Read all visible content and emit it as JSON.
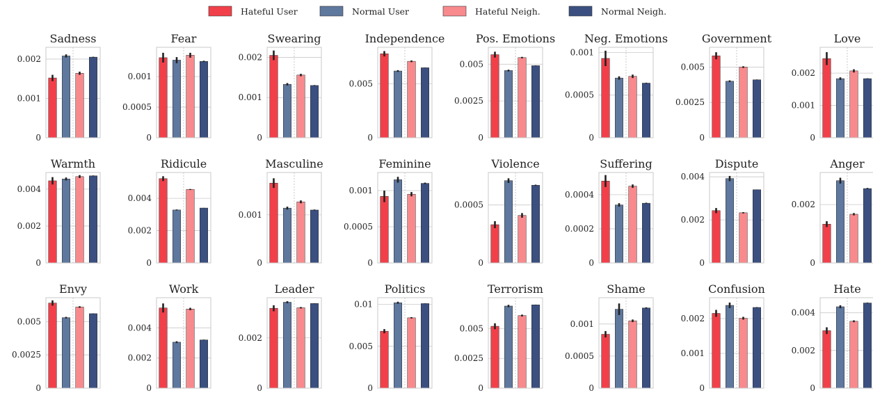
{
  "legend": {
    "position": "top-center",
    "entries": [
      {
        "label": "Hateful User",
        "color": "#f2404a"
      },
      {
        "label": "Normal User",
        "color": "#5f789e"
      },
      {
        "label": "Hateful Neigh.",
        "color": "#f88a8d"
      },
      {
        "label": "Normal Neigh.",
        "color": "#3b5080"
      }
    ]
  },
  "colors": {
    "hateful_user": "#f2404a",
    "normal_user": "#5f789e",
    "hateful_neigh": "#f88a8d",
    "normal_neigh": "#3b5080",
    "error_bar": "#222222",
    "grid": "#c8c8c8",
    "frame": "#c8c8c8"
  },
  "chart_data": [
    {
      "type": "bar",
      "title": "Sadness",
      "categories": [
        "Hateful User",
        "Normal User",
        "Hateful Neigh.",
        "Normal Neigh."
      ],
      "values": [
        0.00152,
        0.00208,
        0.00164,
        0.00205
      ],
      "errors": [
        8e-05,
        4e-05,
        4e-05,
        1e-05
      ],
      "ylim": [
        0,
        0.0023
      ],
      "ticks": [
        {
          "v": 0,
          "label": "0"
        },
        {
          "v": 0.001,
          "label": "0.001"
        },
        {
          "v": 0.002,
          "label": "0.002"
        }
      ],
      "grid": true
    },
    {
      "type": "bar",
      "title": "Fear",
      "categories": [
        "Hateful User",
        "Normal User",
        "Hateful Neigh.",
        "Normal Neigh."
      ],
      "values": [
        0.00131,
        0.00127,
        0.00135,
        0.00125
      ],
      "errors": [
        8e-05,
        5e-05,
        4e-05,
        1e-05
      ],
      "ylim": [
        0,
        0.00148
      ],
      "ticks": [
        {
          "v": 0,
          "label": "0"
        },
        {
          "v": 0.0005,
          "label": "0.0005"
        },
        {
          "v": 0.001,
          "label": "0.001"
        }
      ],
      "grid": true
    },
    {
      "type": "bar",
      "title": "Swearing",
      "categories": [
        "Hateful User",
        "Normal User",
        "Hateful Neigh.",
        "Normal Neigh."
      ],
      "values": [
        0.00205,
        0.00133,
        0.00156,
        0.0013
      ],
      "errors": [
        0.00012,
        3e-05,
        3e-05,
        1e-05
      ],
      "ylim": [
        0,
        0.00225
      ],
      "ticks": [
        {
          "v": 0,
          "label": "0"
        },
        {
          "v": 0.001,
          "label": "0.001"
        },
        {
          "v": 0.002,
          "label": "0.002"
        }
      ],
      "grid": true
    },
    {
      "type": "bar",
      "title": "Independence",
      "categories": [
        "Hateful User",
        "Normal User",
        "Hateful Neigh.",
        "Normal Neigh."
      ],
      "values": [
        0.0078,
        0.0062,
        0.0071,
        0.0065
      ],
      "errors": [
        0.00025,
        8e-05,
        8e-05,
        2e-05
      ],
      "ylim": [
        0,
        0.0084
      ],
      "ticks": [
        {
          "v": 0,
          "label": "0"
        },
        {
          "v": 0.005,
          "label": "0.005"
        }
      ],
      "grid": true
    },
    {
      "type": "bar",
      "title": "Pos. Emotions",
      "categories": [
        "Hateful User",
        "Normal User",
        "Hateful Neigh.",
        "Normal Neigh."
      ],
      "values": [
        0.00565,
        0.00457,
        0.00545,
        0.0049
      ],
      "errors": [
        0.0002,
        6e-05,
        5e-05,
        2e-05
      ],
      "ylim": [
        0,
        0.00615
      ],
      "ticks": [
        {
          "v": 0,
          "label": "0"
        },
        {
          "v": 0.0025,
          "label": "0.0025"
        },
        {
          "v": 0.005,
          "label": "0.005"
        }
      ],
      "grid": true
    },
    {
      "type": "bar",
      "title": "Neg. Emotions",
      "categories": [
        "Hateful User",
        "Normal User",
        "Hateful Neigh.",
        "Normal Neigh."
      ],
      "values": [
        0.00093,
        0.0007,
        0.00072,
        0.00064
      ],
      "errors": [
        9e-05,
        2e-05,
        2e-05,
        5e-06
      ],
      "ylim": [
        0,
        0.00106
      ],
      "ticks": [
        {
          "v": 0,
          "label": "0"
        },
        {
          "v": 0.0005,
          "label": "0.0005"
        },
        {
          "v": 0.001,
          "label": "0.001"
        }
      ],
      "grid": true
    },
    {
      "type": "bar",
      "title": "Government",
      "categories": [
        "Hateful User",
        "Normal User",
        "Hateful Neigh.",
        "Normal Neigh."
      ],
      "values": [
        0.0058,
        0.004,
        0.005,
        0.0041
      ],
      "errors": [
        0.00025,
        6e-05,
        6e-05,
        2e-05
      ],
      "ylim": [
        0,
        0.0064
      ],
      "ticks": [
        {
          "v": 0,
          "label": "0"
        },
        {
          "v": 0.0025,
          "label": "0.0025"
        },
        {
          "v": 0.005,
          "label": "0.005"
        }
      ],
      "grid": true
    },
    {
      "type": "bar",
      "title": "Love",
      "categories": [
        "Hateful User",
        "Normal User",
        "Hateful Neigh.",
        "Normal Neigh."
      ],
      "values": [
        0.00245,
        0.00183,
        0.00207,
        0.00183
      ],
      "errors": [
        0.0002,
        4e-05,
        5e-05,
        1e-05
      ],
      "ylim": [
        0,
        0.0028
      ],
      "ticks": [
        {
          "v": 0,
          "label": "0"
        },
        {
          "v": 0.001,
          "label": "0.001"
        },
        {
          "v": 0.002,
          "label": "0.002"
        }
      ],
      "grid": true
    },
    {
      "type": "bar",
      "title": "Warmth",
      "categories": [
        "Hateful User",
        "Normal User",
        "Hateful Neigh.",
        "Normal Neigh."
      ],
      "values": [
        0.00445,
        0.00455,
        0.00468,
        0.00472
      ],
      "errors": [
        0.0002,
        8e-05,
        8e-05,
        2e-05
      ],
      "ylim": [
        0,
        0.0049
      ],
      "ticks": [
        {
          "v": 0,
          "label": "0"
        },
        {
          "v": 0.002,
          "label": "0.002"
        },
        {
          "v": 0.004,
          "label": "0.004"
        }
      ],
      "grid": true
    },
    {
      "type": "bar",
      "title": "Ridicule",
      "categories": [
        "Hateful User",
        "Normal User",
        "Hateful Neigh.",
        "Normal Neigh."
      ],
      "values": [
        0.00522,
        0.00328,
        0.00455,
        0.0034
      ],
      "errors": [
        0.00015,
        3e-05,
        3e-05,
        1e-05
      ],
      "ylim": [
        0,
        0.0056
      ],
      "ticks": [
        {
          "v": 0,
          "label": "0"
        },
        {
          "v": 0.002,
          "label": "0.002"
        },
        {
          "v": 0.004,
          "label": "0.004"
        }
      ],
      "grid": true
    },
    {
      "type": "bar",
      "title": "Masculine",
      "categories": [
        "Hateful User",
        "Normal User",
        "Hateful Neigh.",
        "Normal Neigh."
      ],
      "values": [
        0.00166,
        0.00114,
        0.00127,
        0.0011
      ],
      "errors": [
        0.0001,
        3e-05,
        3e-05,
        1e-05
      ],
      "ylim": [
        0,
        0.00188
      ],
      "ticks": [
        {
          "v": 0,
          "label": "0"
        },
        {
          "v": 0.001,
          "label": "0.001"
        }
      ],
      "grid": true
    },
    {
      "type": "bar",
      "title": "Feminine",
      "categories": [
        "Hateful User",
        "Normal User",
        "Hateful Neigh.",
        "Normal Neigh."
      ],
      "values": [
        0.00092,
        0.00115,
        0.00095,
        0.0011
      ],
      "errors": [
        8e-05,
        4e-05,
        3e-05,
        1e-05
      ],
      "ylim": [
        0,
        0.00125
      ],
      "ticks": [
        {
          "v": 0,
          "label": "0"
        },
        {
          "v": 0.0005,
          "label": "0.0005"
        },
        {
          "v": 0.001,
          "label": "0.001"
        }
      ],
      "grid": true
    },
    {
      "type": "bar",
      "title": "Violence",
      "categories": [
        "Hateful User",
        "Normal User",
        "Hateful Neigh.",
        "Normal Neigh."
      ],
      "values": [
        0.00033,
        0.00071,
        0.00041,
        0.00067
      ],
      "errors": [
        3e-05,
        2e-05,
        2e-05,
        5e-06
      ],
      "ylim": [
        0,
        0.00078
      ],
      "ticks": [
        {
          "v": 0,
          "label": "0"
        },
        {
          "v": 0.0005,
          "label": "0.0005"
        }
      ],
      "grid": true
    },
    {
      "type": "bar",
      "title": "Suffering",
      "categories": [
        "Hateful User",
        "Normal User",
        "Hateful Neigh.",
        "Normal Neigh."
      ],
      "values": [
        0.00048,
        0.00034,
        0.00045,
        0.00035
      ],
      "errors": [
        3.5e-05,
        1e-05,
        1e-05,
        3e-06
      ],
      "ylim": [
        0,
        0.00053
      ],
      "ticks": [
        {
          "v": 0,
          "label": "0"
        },
        {
          "v": 0.0002,
          "label": "0.0002"
        },
        {
          "v": 0.0004,
          "label": "0.0004"
        }
      ],
      "grid": true
    },
    {
      "type": "bar",
      "title": "Dispute",
      "categories": [
        "Hateful User",
        "Normal User",
        "Hateful Neigh.",
        "Normal Neigh."
      ],
      "values": [
        0.00243,
        0.00392,
        0.00233,
        0.0034
      ],
      "errors": [
        0.00012,
        0.00012,
        3e-05,
        1e-05
      ],
      "ylim": [
        0,
        0.0042
      ],
      "ticks": [
        {
          "v": 0,
          "label": "0"
        },
        {
          "v": 0.002,
          "label": "0.002"
        },
        {
          "v": 0.004,
          "label": "0.004"
        }
      ],
      "grid": true
    },
    {
      "type": "bar",
      "title": "Anger",
      "categories": [
        "Hateful User",
        "Normal User",
        "Hateful Neigh.",
        "Normal Neigh."
      ],
      "values": [
        0.00133,
        0.00282,
        0.00167,
        0.00255
      ],
      "errors": [
        0.0001,
        0.0001,
        4e-05,
        2e-05
      ],
      "ylim": [
        0,
        0.0031
      ],
      "ticks": [
        {
          "v": 0,
          "label": "0"
        },
        {
          "v": 0.002,
          "label": "0.002"
        }
      ],
      "grid": true
    },
    {
      "type": "bar",
      "title": "Envy",
      "categories": [
        "Hateful User",
        "Normal User",
        "Hateful Neigh.",
        "Normal Neigh."
      ],
      "values": [
        0.0064,
        0.0053,
        0.0061,
        0.0056
      ],
      "errors": [
        0.0002,
        6e-05,
        6e-05,
        2e-05
      ],
      "ylim": [
        0,
        0.0068
      ],
      "ticks": [
        {
          "v": 0,
          "label": "0"
        },
        {
          "v": 0.0025,
          "label": "0.0025"
        },
        {
          "v": 0.005,
          "label": "0.005"
        }
      ],
      "grid": true
    },
    {
      "type": "bar",
      "title": "Work",
      "categories": [
        "Hateful User",
        "Normal User",
        "Hateful Neigh.",
        "Normal Neigh."
      ],
      "values": [
        0.00532,
        0.00305,
        0.00525,
        0.0032
      ],
      "errors": [
        0.0003,
        6e-05,
        8e-05,
        2e-05
      ],
      "ylim": [
        0,
        0.006
      ],
      "ticks": [
        {
          "v": 0,
          "label": "0"
        },
        {
          "v": 0.002,
          "label": "0.002"
        },
        {
          "v": 0.004,
          "label": "0.004"
        }
      ],
      "grid": true
    },
    {
      "type": "bar",
      "title": "Leader",
      "categories": [
        "Hateful User",
        "Normal User",
        "Hateful Neigh.",
        "Normal Neigh."
      ],
      "values": [
        0.00318,
        0.00342,
        0.0032,
        0.00337
      ],
      "errors": [
        0.00012,
        4e-05,
        3e-05,
        1e-05
      ],
      "ylim": [
        0,
        0.0036
      ],
      "ticks": [
        {
          "v": 0,
          "label": "0"
        },
        {
          "v": 0.002,
          "label": "0.002"
        }
      ],
      "grid": true
    },
    {
      "type": "bar",
      "title": "Politics",
      "categories": [
        "Hateful User",
        "Normal User",
        "Hateful Neigh.",
        "Normal Neigh."
      ],
      "values": [
        0.0068,
        0.0102,
        0.0084,
        0.0101
      ],
      "errors": [
        0.00025,
        0.00012,
        8e-05,
        2e-05
      ],
      "ylim": [
        0,
        0.0108
      ],
      "ticks": [
        {
          "v": 0,
          "label": "0"
        },
        {
          "v": 0.005,
          "label": "0.005"
        },
        {
          "v": 0.01,
          "label": "0.01"
        }
      ],
      "grid": true
    },
    {
      "type": "bar",
      "title": "Terrorism",
      "categories": [
        "Hateful User",
        "Normal User",
        "Hateful Neigh.",
        "Normal Neigh."
      ],
      "values": [
        0.0052,
        0.0069,
        0.0061,
        0.007
      ],
      "errors": [
        0.00025,
        0.0001,
        8e-05,
        2e-05
      ],
      "ylim": [
        0,
        0.0076
      ],
      "ticks": [
        {
          "v": 0,
          "label": "0"
        },
        {
          "v": 0.0025,
          "label": "0.0025"
        },
        {
          "v": 0.005,
          "label": "0.005"
        }
      ],
      "grid": true
    },
    {
      "type": "bar",
      "title": "Shame",
      "categories": [
        "Hateful User",
        "Normal User",
        "Hateful Neigh.",
        "Normal Neigh."
      ],
      "values": [
        0.00084,
        0.00123,
        0.00105,
        0.00125
      ],
      "errors": [
        5e-05,
        9e-05,
        2e-05,
        1e-05
      ],
      "ylim": [
        0,
        0.00141
      ],
      "ticks": [
        {
          "v": 0,
          "label": "0"
        },
        {
          "v": 0.0005,
          "label": "0.0005"
        },
        {
          "v": 0.001,
          "label": "0.001"
        }
      ],
      "grid": true
    },
    {
      "type": "bar",
      "title": "Confusion",
      "categories": [
        "Hateful User",
        "Normal User",
        "Hateful Neigh.",
        "Normal Neigh."
      ],
      "values": [
        0.00215,
        0.00238,
        0.00201,
        0.00232
      ],
      "errors": [
        0.0001,
        8e-05,
        4e-05,
        1e-05
      ],
      "ylim": [
        0,
        0.0026
      ],
      "ticks": [
        {
          "v": 0,
          "label": "0"
        },
        {
          "v": 0.001,
          "label": "0.001"
        },
        {
          "v": 0.002,
          "label": "0.002"
        }
      ],
      "grid": true
    },
    {
      "type": "bar",
      "title": "Hate",
      "categories": [
        "Hateful User",
        "Normal User",
        "Hateful Neigh.",
        "Normal Neigh."
      ],
      "values": [
        0.00305,
        0.00432,
        0.00355,
        0.00452
      ],
      "errors": [
        0.00018,
        8e-05,
        5e-05,
        2e-05
      ],
      "ylim": [
        0,
        0.0048
      ],
      "ticks": [
        {
          "v": 0,
          "label": "0"
        },
        {
          "v": 0.002,
          "label": "0.002"
        },
        {
          "v": 0.004,
          "label": "0.004"
        }
      ],
      "grid": true
    }
  ]
}
